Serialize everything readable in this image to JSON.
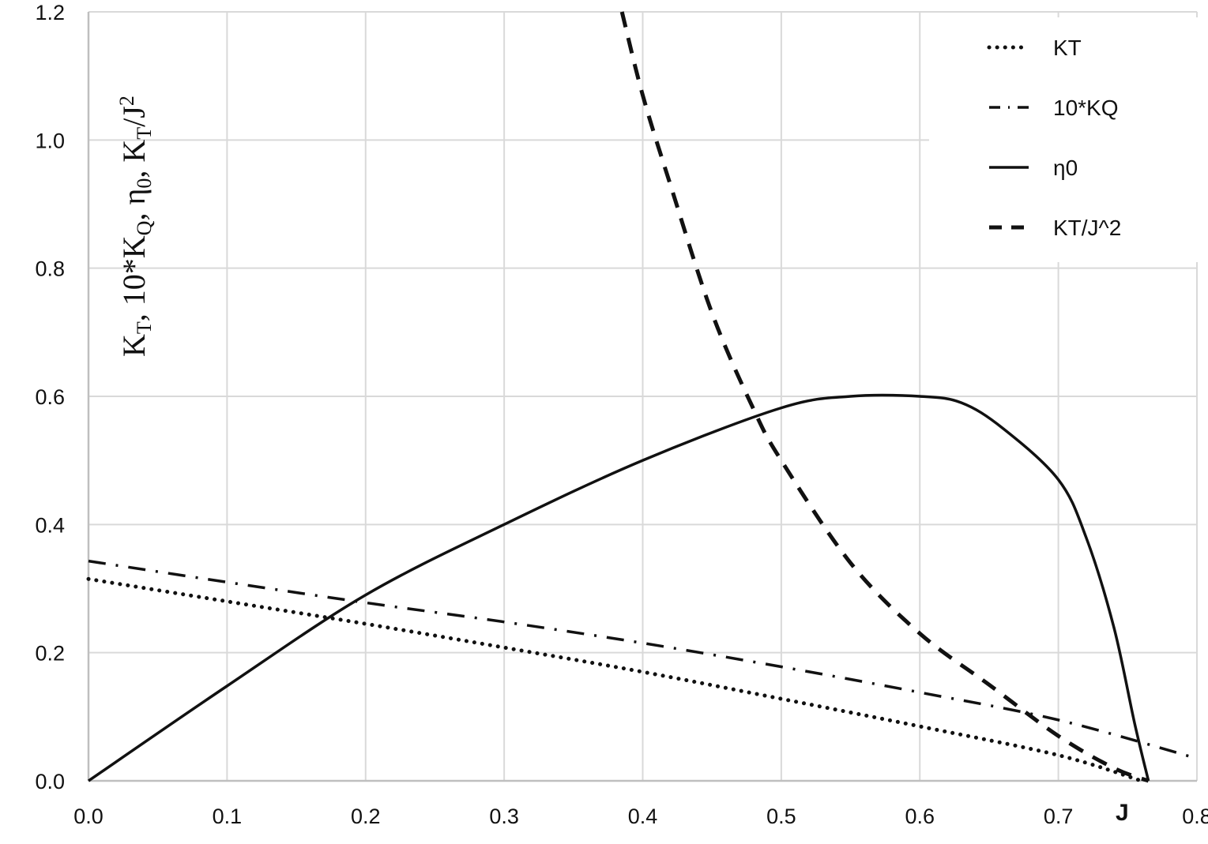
{
  "chart_data": {
    "type": "line",
    "title": "",
    "xlabel": "J",
    "ylabel": "K_T, 10*K_Q, η_0, K_T/J^2",
    "xlim": [
      0.0,
      0.8
    ],
    "ylim": [
      0.0,
      1.2
    ],
    "grid": true,
    "legend_position": "upper right",
    "x_ticks": [
      "0.0",
      "0.1",
      "0.2",
      "0.3",
      "0.4",
      "0.5",
      "0.6",
      "0.7",
      "0.8"
    ],
    "y_ticks": [
      "0.0",
      "0.2",
      "0.4",
      "0.6",
      "0.8",
      "1.0",
      "1.2"
    ],
    "series": [
      {
        "name": "KT",
        "style": "dotted",
        "x": [
          0.0,
          0.1,
          0.2,
          0.3,
          0.4,
          0.5,
          0.6,
          0.7,
          0.76
        ],
        "values": [
          0.315,
          0.28,
          0.245,
          0.208,
          0.17,
          0.128,
          0.085,
          0.04,
          0.0
        ]
      },
      {
        "name": "10*KQ",
        "style": "dashdot",
        "x": [
          0.0,
          0.1,
          0.2,
          0.3,
          0.4,
          0.5,
          0.6,
          0.7,
          0.8
        ],
        "values": [
          0.343,
          0.31,
          0.278,
          0.248,
          0.215,
          0.178,
          0.138,
          0.095,
          0.035
        ]
      },
      {
        "name": "η0",
        "style": "solid",
        "x": [
          0.0,
          0.1,
          0.2,
          0.3,
          0.4,
          0.5,
          0.55,
          0.6,
          0.63,
          0.66,
          0.7,
          0.72,
          0.74,
          0.755,
          0.765
        ],
        "values": [
          0.0,
          0.148,
          0.29,
          0.4,
          0.5,
          0.582,
          0.6,
          0.6,
          0.59,
          0.55,
          0.47,
          0.38,
          0.24,
          0.09,
          0.0
        ]
      },
      {
        "name": "KT/J^2",
        "style": "dashed",
        "x": [
          0.385,
          0.4,
          0.42,
          0.45,
          0.48,
          0.5,
          0.55,
          0.6,
          0.65,
          0.7,
          0.74,
          0.765
        ],
        "values": [
          1.2,
          1.07,
          0.93,
          0.73,
          0.58,
          0.5,
          0.34,
          0.23,
          0.15,
          0.07,
          0.02,
          0.0
        ]
      }
    ]
  },
  "legend": {
    "items": [
      {
        "label": "KT",
        "style": "dotted"
      },
      {
        "label": "10*KQ",
        "style": "dashdot"
      },
      {
        "label": "η0",
        "style": "solid"
      },
      {
        "label": "KT/J^2",
        "style": "dashed"
      }
    ]
  },
  "colors": {
    "line": "#111111",
    "grid": "#d9d9d9",
    "background": "#ffffff"
  }
}
